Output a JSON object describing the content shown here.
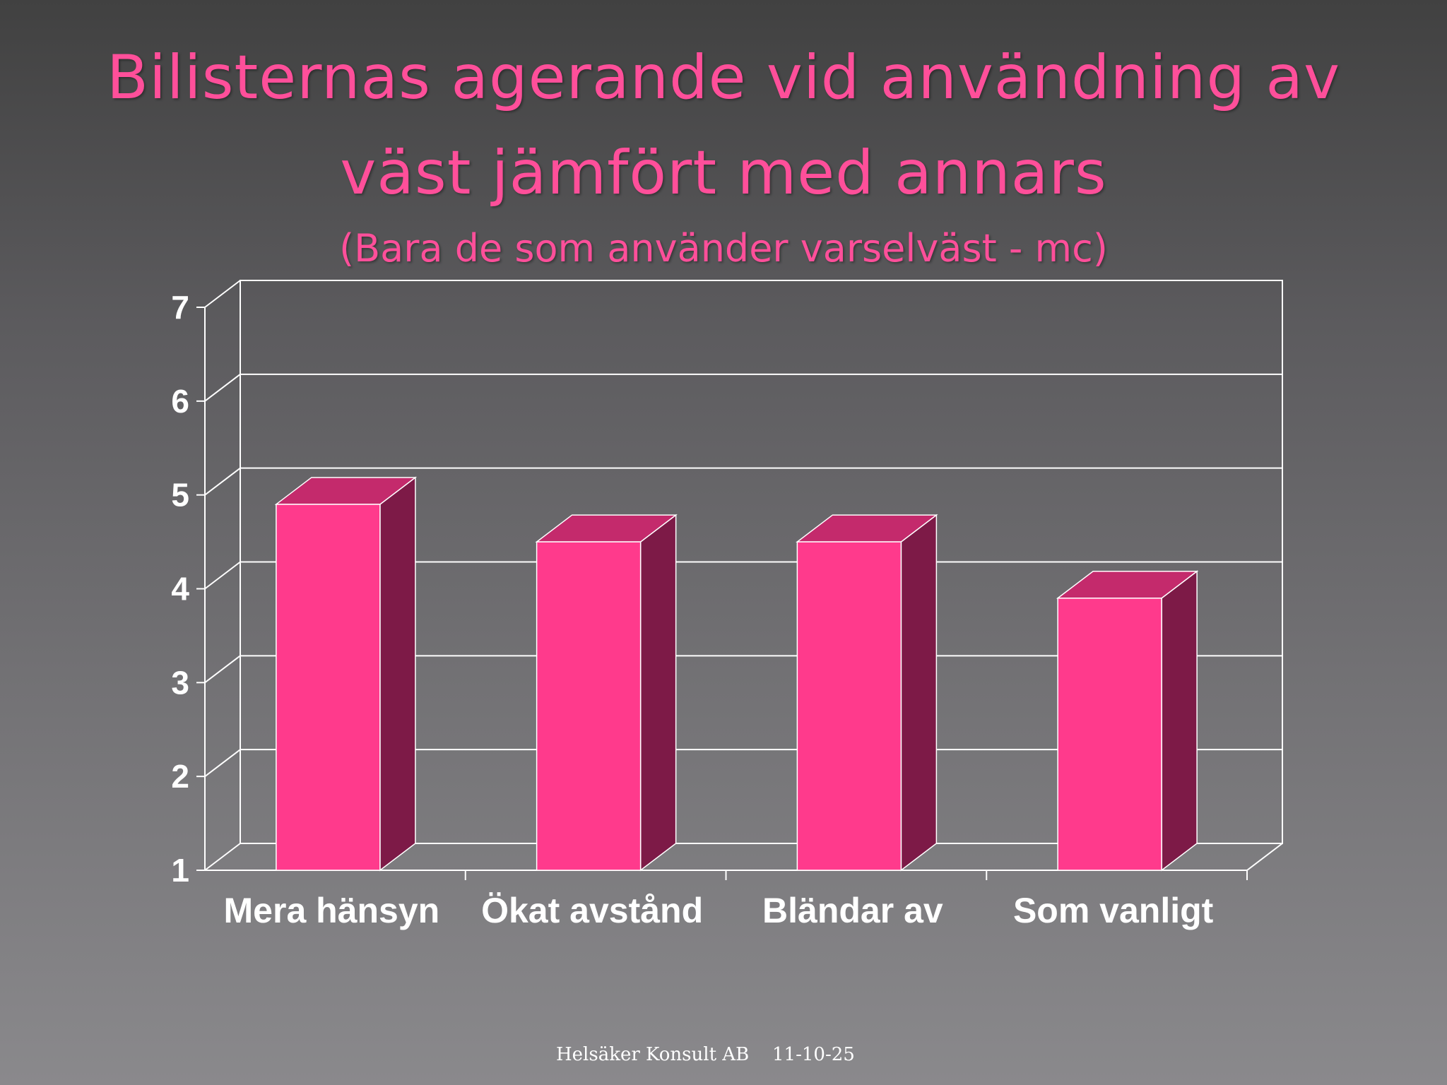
{
  "slide": {
    "title_line1": "Bilisternas agerande vid användning av",
    "title_line2": "väst jämfört med annars",
    "subtitle": "(Bara de som använder varselväst - mc)",
    "footer_company": "Helsäker Konsult AB",
    "footer_date": "11-10-25"
  },
  "colors": {
    "bar_front": "#ff3a8c",
    "bar_side": "#7d1a47",
    "bar_top": "#c42a6c",
    "grid": "#ffffff",
    "title": "#ff4f9a"
  },
  "chart_data": {
    "type": "bar",
    "title": "Bilisternas agerande vid användning av väst jämfört med annars",
    "subtitle": "(Bara de som använder varselväst - mc)",
    "categories": [
      "Mera hänsyn",
      "Ökat avstånd",
      "Bländar av",
      "Som vanligt"
    ],
    "values": [
      4.9,
      4.5,
      4.5,
      3.9
    ],
    "ylim": [
      1,
      7
    ],
    "yticks": [
      "1",
      "2",
      "3",
      "4",
      "5",
      "6",
      "7"
    ],
    "xlabel": "",
    "ylabel": "",
    "grid": true,
    "legend": "none",
    "style": "3d"
  }
}
